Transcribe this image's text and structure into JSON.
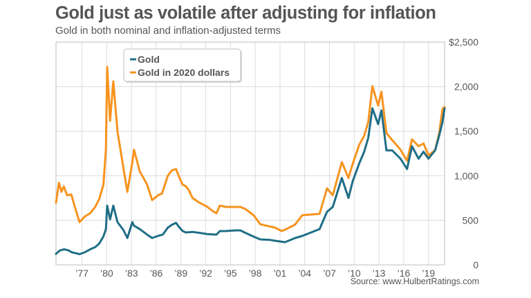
{
  "chart_data": {
    "type": "line",
    "title": "Gold just as volatile after adjusting for inflation",
    "subtitle": "Gold in both nominal and inflation-adjusted terms",
    "source": "Source: www.HulbertRatings.com",
    "xlabel": "",
    "ylabel": "",
    "xlim": [
      1973.85,
      2020.95
    ],
    "ylim": [
      0,
      2500
    ],
    "grid": true,
    "legend_position": "top-left",
    "x_ticks": [
      {
        "value": 1977,
        "label": "’77"
      },
      {
        "value": 1980,
        "label": "’80"
      },
      {
        "value": 1983,
        "label": "’83"
      },
      {
        "value": 1986,
        "label": "’86"
      },
      {
        "value": 1989,
        "label": "’89"
      },
      {
        "value": 1992,
        "label": "’92"
      },
      {
        "value": 1995,
        "label": "’95"
      },
      {
        "value": 1998,
        "label": "’98"
      },
      {
        "value": 2001,
        "label": "’01"
      },
      {
        "value": 2004,
        "label": "’04"
      },
      {
        "value": 2007,
        "label": "’07"
      },
      {
        "value": 2010,
        "label": "’10"
      },
      {
        "value": 2013,
        "label": "’13"
      },
      {
        "value": 2016,
        "label": "’16"
      },
      {
        "value": 2019,
        "label": "’19"
      }
    ],
    "y_ticks": [
      {
        "value": 0,
        "label": "0"
      },
      {
        "value": 500,
        "label": "500"
      },
      {
        "value": 1000,
        "label": "1,000"
      },
      {
        "value": 1500,
        "label": "1,500"
      },
      {
        "value": 2000,
        "label": "2,000"
      },
      {
        "value": 2500,
        "label": "$2,500"
      }
    ],
    "series": [
      {
        "name": "Gold in 2020 dollars",
        "color": "#f7931e",
        "x": [
          1973.85,
          1974.2,
          1974.5,
          1974.8,
          1975.2,
          1975.7,
          1976.3,
          1976.7,
          1977.3,
          1978.0,
          1978.6,
          1979.1,
          1979.6,
          1979.9,
          1980.05,
          1980.4,
          1980.8,
          1981.3,
          1982.0,
          1982.5,
          1983.1,
          1983.3,
          1984.0,
          1984.9,
          1985.5,
          1986.2,
          1986.7,
          1987.4,
          1987.9,
          1988.4,
          1988.8,
          1989.2,
          1989.6,
          1990.0,
          1990.4,
          1991.2,
          1992.2,
          1992.9,
          1993.3,
          1993.7,
          1994.5,
          1995.6,
          1996.2,
          1996.8,
          1997.8,
          1998.6,
          1999.8,
          2000.4,
          2001.2,
          2001.6,
          2002.8,
          2003.7,
          2005.8,
          2006.7,
          2007.4,
          2008.5,
          2009.3,
          2009.8,
          2010.6,
          2011.2,
          2011.7,
          2012.2,
          2012.9,
          2013.3,
          2013.9,
          2014.6,
          2015.6,
          2016.4,
          2017.0,
          2017.8,
          2018.4,
          2019.0,
          2019.8,
          2020.3,
          2020.7,
          2020.95
        ],
        "values": [
          697,
          921,
          820,
          880,
          780,
          790,
          600,
          480,
          540,
          580,
          650,
          740,
          900,
          1300,
          2221,
          1618,
          2059,
          1500,
          1100,
          820,
          1150,
          1292,
          1050,
          900,
          727,
          780,
          800,
          1000,
          1060,
          1076,
          980,
          900,
          882,
          830,
          751,
          700,
          650,
          600,
          580,
          665,
          650,
          650,
          650,
          627,
          557,
          457,
          430,
          418,
          380,
          395,
          450,
          557,
          573,
          859,
          782,
          1153,
          975,
          1130,
          1347,
          1447,
          1602,
          2005,
          1788,
          1943,
          1478,
          1401,
          1293,
          1169,
          1409,
          1331,
          1362,
          1231,
          1285,
          1478,
          1749,
          1772
        ]
      },
      {
        "name": "Gold",
        "color": "#1f6e86",
        "x": [
          1973.85,
          1974.3,
          1974.8,
          1975.3,
          1975.8,
          1976.3,
          1976.7,
          1977.3,
          1978.0,
          1978.6,
          1979.1,
          1979.6,
          1979.9,
          1980.05,
          1980.4,
          1980.8,
          1981.3,
          1982.0,
          1982.5,
          1983.1,
          1983.3,
          1984.0,
          1984.9,
          1985.5,
          1986.2,
          1986.8,
          1987.4,
          1987.9,
          1988.4,
          1988.8,
          1989.2,
          1989.6,
          1990.4,
          1991.2,
          1992.2,
          1993.3,
          1993.7,
          1994.5,
          1995.6,
          1996.2,
          1996.8,
          1997.8,
          1998.6,
          1999.8,
          2000.4,
          2001.2,
          2001.6,
          2002.8,
          2003.7,
          2005.8,
          2006.7,
          2007.4,
          2008.5,
          2009.3,
          2009.8,
          2010.6,
          2011.2,
          2011.7,
          2012.2,
          2012.9,
          2013.3,
          2013.9,
          2014.6,
          2015.6,
          2016.4,
          2017.0,
          2017.8,
          2018.4,
          2019.0,
          2019.8,
          2020.3,
          2020.7,
          2020.95
        ],
        "values": [
          124,
          160,
          175,
          165,
          140,
          130,
          120,
          140,
          175,
          200,
          240,
          320,
          402,
          665,
          511,
          665,
          480,
          395,
          302,
          480,
          440,
          402,
          340,
          302,
          325,
          340,
          418,
          450,
          472,
          420,
          380,
          364,
          370,
          360,
          345,
          340,
          379,
          380,
          387,
          387,
          360,
          317,
          286,
          280,
          271,
          260,
          255,
          300,
          325,
          402,
          596,
          650,
          975,
          751,
          936,
          1138,
          1269,
          1424,
          1757,
          1579,
          1734,
          1285,
          1285,
          1192,
          1076,
          1331,
          1192,
          1269,
          1192,
          1285,
          1450,
          1602,
          1757
        ]
      }
    ]
  }
}
